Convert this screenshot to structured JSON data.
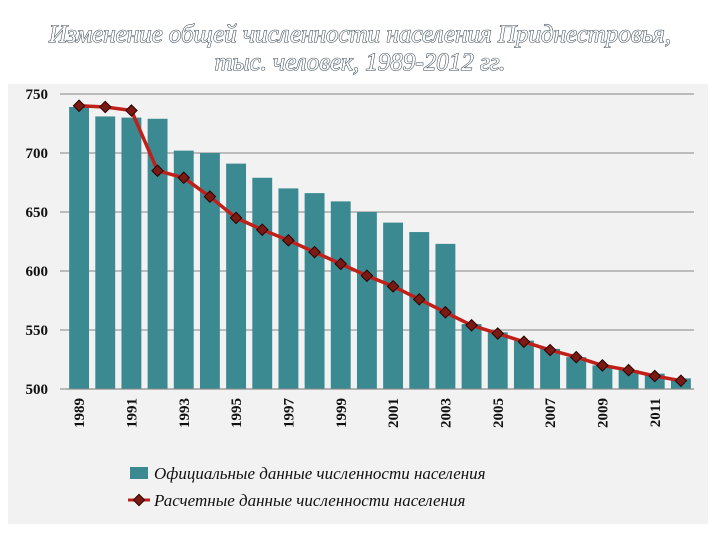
{
  "chart_data": {
    "type": "bar",
    "title": "Изменение общей численности населения Приднестровья,",
    "subtitle": "тыс. человек, 1989-2012 гг.",
    "xlabel": "",
    "ylabel": "",
    "ylim": [
      500,
      750
    ],
    "y_ticks": [
      "750",
      "700",
      "650",
      "600",
      "550",
      "500"
    ],
    "x_tick_labels": [
      "1989",
      "1991",
      "1993",
      "1995",
      "1997",
      "1999",
      "2001",
      "2003",
      "2005",
      "2007",
      "2009",
      "2011"
    ],
    "categories": [
      "1989",
      "1990",
      "1991",
      "1992",
      "1993",
      "1994",
      "1995",
      "1996",
      "1997",
      "1998",
      "1999",
      "2000",
      "2001",
      "2002",
      "2003",
      "2004",
      "2005",
      "2006",
      "2007",
      "2008",
      "2009",
      "2010",
      "2011",
      "2012"
    ],
    "grid": true,
    "legend_position": "bottom",
    "series": [
      {
        "name": "Официальные данные численности населения",
        "type": "bar",
        "color": "#3b8a92",
        "values": [
          739,
          731,
          730,
          729,
          702,
          700,
          691,
          679,
          670,
          666,
          659,
          650,
          641,
          633,
          623,
          555,
          548,
          541,
          534,
          527,
          520,
          516,
          513,
          509
        ]
      },
      {
        "name": "Расчетные данные численности населения",
        "type": "line",
        "color": "#c0201a",
        "marker_color": "#7a1a12",
        "values": [
          740,
          739,
          736,
          685,
          679,
          663,
          645,
          635,
          626,
          616,
          606,
          596,
          587,
          576,
          565,
          554,
          547,
          540,
          533,
          527,
          520,
          516,
          511,
          507
        ]
      }
    ]
  }
}
